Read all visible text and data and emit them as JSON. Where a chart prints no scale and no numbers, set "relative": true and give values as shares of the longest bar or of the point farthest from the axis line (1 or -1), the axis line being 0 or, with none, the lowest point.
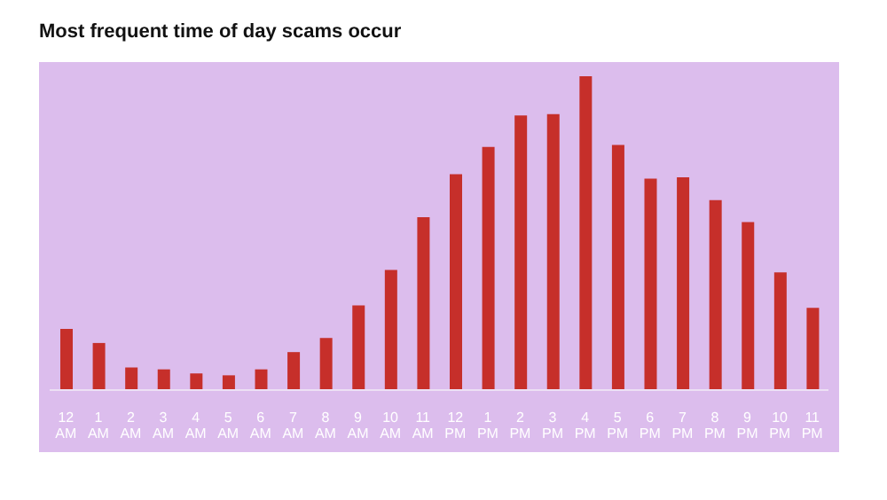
{
  "chart_data": {
    "type": "bar",
    "title": "Most frequent time of day scams occur",
    "relative": true,
    "color": "#c62f2a",
    "categories": [
      "12 AM",
      "1 AM",
      "2 AM",
      "3 AM",
      "4 AM",
      "5 AM",
      "6 AM",
      "7 AM",
      "8 AM",
      "9 AM",
      "10 AM",
      "11 AM",
      "12 PM",
      "1 PM",
      "2 PM",
      "3 PM",
      "4 PM",
      "5 PM",
      "6 PM",
      "7 PM",
      "8 PM",
      "9 PM",
      "10 PM",
      "11 PM"
    ],
    "values": [
      0.195,
      0.15,
      0.072,
      0.066,
      0.053,
      0.047,
      0.066,
      0.121,
      0.166,
      0.27,
      0.383,
      0.551,
      0.688,
      0.775,
      0.875,
      0.879,
      1,
      0.781,
      0.674,
      0.678,
      0.605,
      0.535,
      0.375,
      0.262
    ]
  }
}
